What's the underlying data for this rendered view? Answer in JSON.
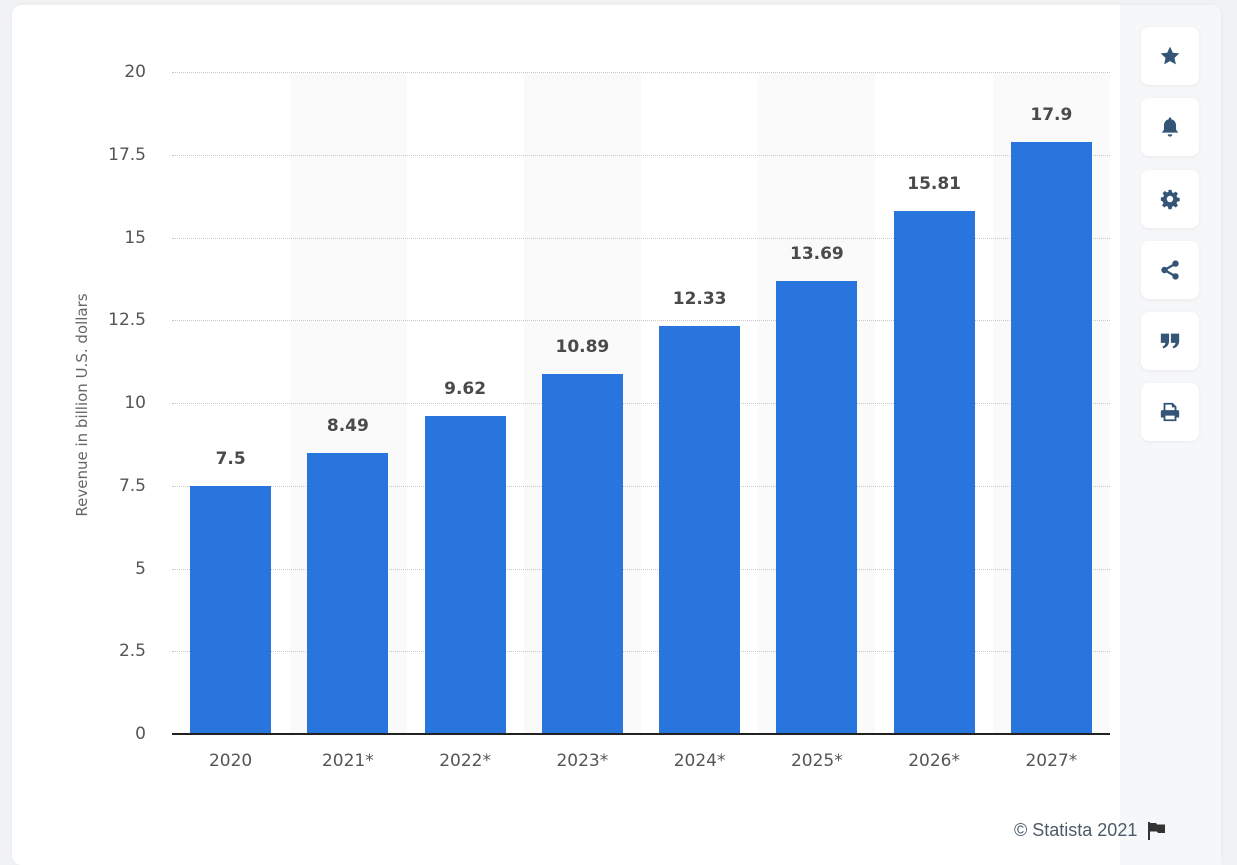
{
  "chart_data": {
    "type": "bar",
    "title": "",
    "xlabel": "",
    "ylabel": "Revenue in billion U.S. dollars",
    "categories": [
      "2020",
      "2021*",
      "2022*",
      "2023*",
      "2024*",
      "2025*",
      "2026*",
      "2027*"
    ],
    "values": [
      7.5,
      8.49,
      9.62,
      10.89,
      12.33,
      13.69,
      15.81,
      17.9
    ],
    "value_labels": [
      "7.5",
      "8.49",
      "9.62",
      "10.89",
      "12.33",
      "13.69",
      "15.81",
      "17.9"
    ],
    "ylim": [
      0,
      20
    ],
    "yticks": [
      "0",
      "2.5",
      "5",
      "7.5",
      "10",
      "12.5",
      "15",
      "17.5",
      "20"
    ],
    "grid": true,
    "legend": null,
    "bar_color": "#2876dd"
  },
  "toolbar": {
    "items": [
      {
        "name": "favorite",
        "icon": "star-icon"
      },
      {
        "name": "notification",
        "icon": "bell-icon"
      },
      {
        "name": "settings",
        "icon": "gear-icon"
      },
      {
        "name": "share",
        "icon": "share-icon"
      },
      {
        "name": "citation",
        "icon": "quote-icon"
      },
      {
        "name": "print",
        "icon": "print-icon"
      }
    ]
  },
  "footer": {
    "credit": "© Statista 2021",
    "flag_icon": "flag-icon"
  }
}
